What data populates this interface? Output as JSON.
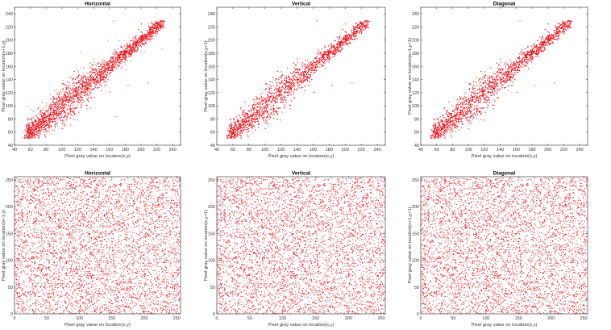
{
  "figure": {
    "point_color": "#e8141c"
  },
  "chart_data": [
    {
      "type": "scatter",
      "title": "Horizontal",
      "xlabel": "Pixel gray value on location(x,y)",
      "ylabel": "Pixel gray value on location(x+1,y)",
      "xlim": [
        40,
        250
      ],
      "ylim": [
        40,
        250
      ],
      "xticks": [
        40,
        60,
        80,
        100,
        120,
        140,
        160,
        180,
        200,
        220,
        240
      ],
      "yticks": [
        40,
        60,
        80,
        100,
        120,
        140,
        160,
        180,
        200,
        220,
        240
      ],
      "grid": false,
      "correlated": true,
      "x_range_points": [
        55,
        228
      ],
      "series": [
        {
          "x": [
            60,
            70,
            80,
            90,
            100,
            110,
            120,
            130,
            140,
            150,
            160,
            170,
            180,
            190,
            200,
            210,
            220,
            228
          ],
          "y": [
            62,
            71,
            81,
            90,
            101,
            110,
            119,
            131,
            141,
            150,
            159,
            171,
            180,
            191,
            199,
            211,
            219,
            226
          ]
        }
      ]
    },
    {
      "type": "scatter",
      "title": "Vertical",
      "xlabel": "Pixel gray value on location(x,y)",
      "ylabel": "Pixel gray value on location(x,y+1)",
      "xlim": [
        40,
        250
      ],
      "ylim": [
        40,
        250
      ],
      "xticks": [
        40,
        60,
        80,
        100,
        120,
        140,
        160,
        180,
        200,
        220,
        240
      ],
      "yticks": [
        40,
        60,
        80,
        100,
        120,
        140,
        160,
        180,
        200,
        220,
        240
      ],
      "grid": false,
      "correlated": true,
      "x_range_points": [
        55,
        228
      ],
      "series": [
        {
          "x": [
            60,
            70,
            80,
            90,
            100,
            110,
            120,
            130,
            140,
            150,
            160,
            170,
            180,
            190,
            200,
            210,
            220,
            228
          ],
          "y": [
            61,
            72,
            80,
            91,
            99,
            111,
            121,
            129,
            140,
            151,
            161,
            169,
            181,
            189,
            201,
            209,
            221,
            227
          ]
        }
      ]
    },
    {
      "type": "scatter",
      "title": "Diagonal",
      "xlabel": "Pixel gray value on location(x,y)",
      "ylabel": "Pixel gray value on location(x+1,y+1)",
      "xlim": [
        40,
        250
      ],
      "ylim": [
        40,
        250
      ],
      "xticks": [
        40,
        60,
        80,
        100,
        120,
        140,
        160,
        180,
        200,
        220,
        240
      ],
      "yticks": [
        40,
        60,
        80,
        100,
        120,
        140,
        160,
        180,
        200,
        220,
        240
      ],
      "grid": false,
      "correlated": true,
      "x_range_points": [
        55,
        228
      ],
      "series": [
        {
          "x": [
            60,
            70,
            80,
            90,
            100,
            110,
            120,
            130,
            140,
            150,
            160,
            170,
            180,
            190,
            200,
            210,
            220,
            228
          ],
          "y": [
            63,
            70,
            82,
            89,
            102,
            109,
            122,
            128,
            142,
            149,
            162,
            168,
            182,
            188,
            202,
            208,
            222,
            225
          ]
        }
      ]
    },
    {
      "type": "scatter",
      "title": "Horizontal",
      "xlabel": "Pixel gray value on location(x,y)",
      "ylabel": "Pixel gray value on location(x+1,y)",
      "xlim": [
        0,
        256
      ],
      "ylim": [
        0,
        256
      ],
      "xticks": [
        0,
        50,
        100,
        150,
        200,
        250
      ],
      "yticks": [
        0,
        50,
        100,
        150,
        200,
        250
      ],
      "grid": false,
      "correlated": false,
      "x_range_points": [
        0,
        255
      ],
      "series": [
        {
          "x": [
            5,
            30,
            55,
            80,
            105,
            130,
            155,
            180,
            205,
            230,
            250
          ],
          "y": [
            210,
            40,
            180,
            95,
            20,
            240,
            130,
            60,
            170,
            110,
            5
          ]
        }
      ]
    },
    {
      "type": "scatter",
      "title": "Vertical",
      "xlabel": "Pixel gray value on location(x,y)",
      "ylabel": "Pixel gray value on location(x,y+1)",
      "xlim": [
        0,
        256
      ],
      "ylim": [
        0,
        256
      ],
      "xticks": [
        0,
        50,
        100,
        150,
        200,
        250
      ],
      "yticks": [
        0,
        50,
        100,
        150,
        200,
        250
      ],
      "grid": false,
      "correlated": false,
      "x_range_points": [
        0,
        255
      ],
      "series": [
        {
          "x": [
            5,
            30,
            55,
            80,
            105,
            130,
            155,
            180,
            205,
            230,
            250
          ],
          "y": [
            75,
            200,
            15,
            150,
            230,
            90,
            35,
            190,
            120,
            245,
            60
          ]
        }
      ]
    },
    {
      "type": "scatter",
      "title": "Diagonal",
      "xlabel": "Pixel gray value on location(x,y)",
      "ylabel": "Pixel gray value on location(x+1,y+1)",
      "xlim": [
        0,
        256
      ],
      "ylim": [
        0,
        256
      ],
      "xticks": [
        0,
        50,
        100,
        150,
        200,
        250
      ],
      "yticks": [
        0,
        50,
        100,
        150,
        200,
        250
      ],
      "grid": false,
      "correlated": false,
      "x_range_points": [
        0,
        255
      ],
      "series": [
        {
          "x": [
            5,
            30,
            55,
            80,
            105,
            130,
            155,
            180,
            205,
            230,
            250
          ],
          "y": [
            140,
            10,
            225,
            65,
            175,
            45,
            250,
            100,
            25,
            195,
            155
          ]
        }
      ]
    }
  ]
}
